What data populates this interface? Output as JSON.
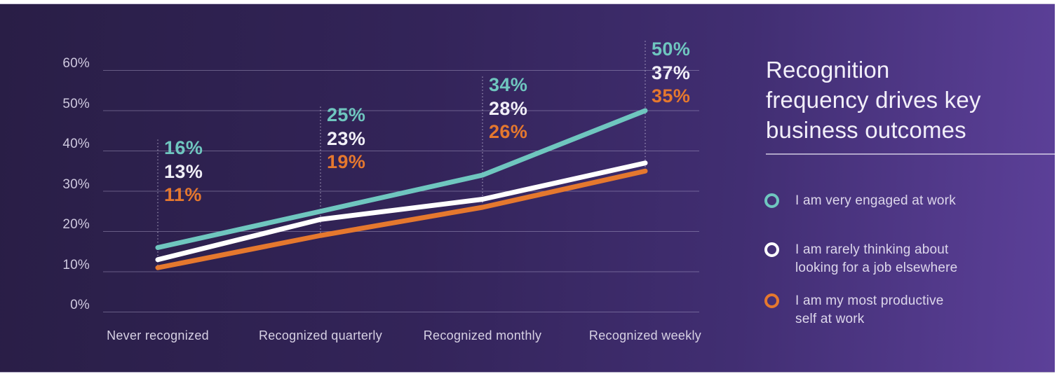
{
  "chart_data": {
    "type": "line",
    "title": "Recognition frequency drives key business outcomes",
    "categories": [
      "Never recognized",
      "Recognized quarterly",
      "Recognized monthly",
      "Recognized weekly"
    ],
    "series": [
      {
        "name": "I am very engaged at work",
        "color": "#6FC6BF",
        "values": [
          16,
          25,
          34,
          50
        ]
      },
      {
        "name": "I am rarely thinking about looking for a job elsewhere",
        "color": "#FFFFFF",
        "values": [
          13,
          23,
          28,
          37
        ]
      },
      {
        "name": "I am my most productive self at work",
        "color": "#E5782E",
        "values": [
          11,
          19,
          26,
          35
        ]
      }
    ],
    "data_label_format": "{value}%",
    "y_axis": {
      "range": [
        0,
        62
      ],
      "ticks": [
        {
          "value": 60,
          "label": "60%"
        },
        {
          "value": 50,
          "label": "50%"
        },
        {
          "value": 40,
          "label": "40%"
        },
        {
          "value": 30,
          "label": "30%"
        },
        {
          "value": 20,
          "label": "20%"
        },
        {
          "value": 10,
          "label": "10%"
        },
        {
          "value": 0,
          "label": "0%"
        }
      ]
    },
    "grid": true,
    "legend_position": "right"
  },
  "panel": {
    "title_lines": [
      "Recognition",
      "frequency drives key",
      "business outcomes"
    ],
    "legend": [
      {
        "color": "#6FC6BF",
        "lines": [
          "I am very engaged at work"
        ]
      },
      {
        "color": "#FFFFFF",
        "lines": [
          "I am rarely thinking about",
          "looking for a job elsewhere"
        ]
      },
      {
        "color": "#E5782E",
        "lines": [
          "I am my most productive",
          "self at work"
        ]
      }
    ]
  },
  "theme": {
    "background_left": "#291E46",
    "background_right": "#5C4099",
    "grid_color": "rgba(187,179,212,0.42)",
    "guide_color": "rgba(228,223,243,0.55)",
    "axis_text_color": "#CFC9DF",
    "title_color": "#F2EFF9",
    "legend_text_color": "#DDD7EB",
    "white_label_color": "#F1EFF7"
  }
}
